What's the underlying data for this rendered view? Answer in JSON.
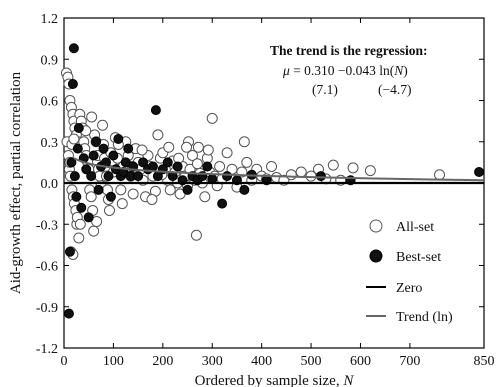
{
  "chart_data": {
    "type": "scatter",
    "xlabel": "Ordered by sample size, N",
    "ylabel": "Aid-growth effect, partial correlation",
    "xlim": [
      0,
      850
    ],
    "ylim": [
      -1.2,
      1.2
    ],
    "x_ticks": [
      "0",
      "100",
      "200",
      "300",
      "400",
      "500",
      "600",
      "700",
      "850"
    ],
    "y_ticks": [
      "1.2",
      "0.9",
      "0.6",
      "0.3",
      "0.0",
      "-0.3",
      "-0.6",
      "-0.9",
      "-1.2"
    ],
    "grid": false,
    "legend_position": "lower-right",
    "annotation": {
      "line1": "The trend is the regression:",
      "line2_pre": "μ",
      "line2_main": " = 0.310 −0.043 ln(",
      "line2_var": "N",
      "line2_close": ")",
      "t1": "(7.1)",
      "t2": "(−4.7)"
    },
    "legend": [
      {
        "label": "All-set",
        "marker": "hollow-circle"
      },
      {
        "label": "Best-set",
        "marker": "filled-circle"
      },
      {
        "label": "Zero",
        "marker": "line"
      },
      {
        "label": "Trend (ln)",
        "marker": "line"
      }
    ],
    "trend": {
      "intercept": 0.31,
      "slope": -0.043,
      "fn": "ln"
    },
    "colors": {
      "best": "#111111",
      "all_stroke": "#555555",
      "zero": "#000000",
      "trend": "#666666"
    },
    "series": [
      {
        "name": "All-set",
        "points": [
          [
            5,
            0.8
          ],
          [
            8,
            0.77
          ],
          [
            10,
            0.72
          ],
          [
            12,
            0.6
          ],
          [
            15,
            0.55
          ],
          [
            18,
            0.5
          ],
          [
            20,
            0.45
          ],
          [
            22,
            0.4
          ],
          [
            25,
            0.35
          ],
          [
            28,
            0.3
          ],
          [
            6,
            0.3
          ],
          [
            9,
            0.2
          ],
          [
            11,
            0.1
          ],
          [
            13,
            0.05
          ],
          [
            16,
            -0.05
          ],
          [
            19,
            -0.1
          ],
          [
            21,
            -0.15
          ],
          [
            24,
            -0.2
          ],
          [
            26,
            -0.3
          ],
          [
            30,
            -0.4
          ],
          [
            14,
            -0.5
          ],
          [
            18,
            -0.52
          ],
          [
            32,
            0.5
          ],
          [
            35,
            0.45
          ],
          [
            38,
            0.4
          ],
          [
            40,
            0.3
          ],
          [
            42,
            0.25
          ],
          [
            45,
            0.2
          ],
          [
            48,
            0.15
          ],
          [
            50,
            0.1
          ],
          [
            52,
            -0.05
          ],
          [
            55,
            -0.1
          ],
          [
            58,
            -0.2
          ],
          [
            60,
            -0.35
          ],
          [
            62,
            0.35
          ],
          [
            65,
            0.3
          ],
          [
            68,
            0.2
          ],
          [
            70,
            0.1
          ],
          [
            72,
            0.05
          ],
          [
            75,
            -0.02
          ],
          [
            78,
            0.42
          ],
          [
            80,
            0.28
          ],
          [
            82,
            0.18
          ],
          [
            85,
            0.12
          ],
          [
            88,
            -0.05
          ],
          [
            90,
            -0.12
          ],
          [
            92,
            -0.2
          ],
          [
            95,
            0.22
          ],
          [
            98,
            0.16
          ],
          [
            100,
            0.08
          ],
          [
            104,
            0.33
          ],
          [
            108,
            0.18
          ],
          [
            112,
            0.1
          ],
          [
            115,
            -0.05
          ],
          [
            118,
            -0.15
          ],
          [
            120,
            0.12
          ],
          [
            125,
            0.3
          ],
          [
            130,
            0.2
          ],
          [
            135,
            0.05
          ],
          [
            140,
            -0.08
          ],
          [
            145,
            0.25
          ],
          [
            150,
            0.15
          ],
          [
            155,
            0.1
          ],
          [
            160,
            0.02
          ],
          [
            165,
            -0.1
          ],
          [
            170,
            0.2
          ],
          [
            175,
            0.12
          ],
          [
            180,
            0.05
          ],
          [
            185,
            -0.06
          ],
          [
            190,
            0.35
          ],
          [
            195,
            0.18
          ],
          [
            200,
            0.22
          ],
          [
            205,
            0.1
          ],
          [
            210,
            0.02
          ],
          [
            215,
            -0.05
          ],
          [
            220,
            0.16
          ],
          [
            225,
            0.08
          ],
          [
            230,
            0.0
          ],
          [
            235,
            -0.08
          ],
          [
            240,
            0.12
          ],
          [
            245,
            0.05
          ],
          [
            250,
            -0.02
          ],
          [
            255,
            0.1
          ],
          [
            260,
            0.2
          ],
          [
            265,
            0.02
          ],
          [
            268,
            -0.38
          ],
          [
            270,
            0.14
          ],
          [
            275,
            0.07
          ],
          [
            280,
            0.0
          ],
          [
            285,
            -0.1
          ],
          [
            290,
            0.18
          ],
          [
            295,
            0.08
          ],
          [
            300,
            0.47
          ],
          [
            305,
            0.05
          ],
          [
            310,
            -0.02
          ],
          [
            315,
            0.12
          ],
          [
            320,
            0.03
          ],
          [
            330,
            0.22
          ],
          [
            340,
            0.1
          ],
          [
            350,
            -0.03
          ],
          [
            360,
            0.08
          ],
          [
            365,
            0.3
          ],
          [
            370,
            0.15
          ],
          [
            380,
            0.02
          ],
          [
            390,
            0.1
          ],
          [
            400,
            0.05
          ],
          [
            410,
            0.03
          ],
          [
            420,
            0.12
          ],
          [
            430,
            0.04
          ],
          [
            445,
            0.02
          ],
          [
            460,
            0.06
          ],
          [
            480,
            0.08
          ],
          [
            500,
            0.05
          ],
          [
            515,
            0.1
          ],
          [
            530,
            0.03
          ],
          [
            545,
            0.13
          ],
          [
            560,
            0.02
          ],
          [
            585,
            0.11
          ],
          [
            620,
            0.09
          ],
          [
            760,
            0.06
          ],
          [
            12,
            0.15
          ],
          [
            16,
            0.28
          ],
          [
            20,
            0.32
          ],
          [
            27,
            -0.25
          ],
          [
            33,
            -0.3
          ],
          [
            44,
            0.38
          ],
          [
            56,
            0.48
          ],
          [
            66,
            -0.28
          ],
          [
            86,
            0.05
          ],
          [
            110,
            0.28
          ],
          [
            138,
            0.12
          ],
          [
            158,
            0.24
          ],
          [
            178,
            -0.12
          ],
          [
            198,
            0.06
          ],
          [
            212,
            0.26
          ],
          [
            232,
            0.18
          ],
          [
            252,
            0.3
          ],
          [
            272,
            0.26
          ],
          [
            292,
            0.24
          ],
          [
            248,
            0.26
          ]
        ]
      },
      {
        "name": "Best-set",
        "points": [
          [
            10,
            -0.95
          ],
          [
            12,
            -0.5
          ],
          [
            15,
            0.15
          ],
          [
            18,
            0.72
          ],
          [
            20,
            0.98
          ],
          [
            22,
            0.05
          ],
          [
            25,
            -0.1
          ],
          [
            28,
            0.25
          ],
          [
            30,
            0.4
          ],
          [
            35,
            -0.18
          ],
          [
            40,
            0.18
          ],
          [
            45,
            0.1
          ],
          [
            50,
            -0.25
          ],
          [
            55,
            0.05
          ],
          [
            60,
            0.2
          ],
          [
            65,
            0.3
          ],
          [
            70,
            -0.05
          ],
          [
            75,
            0.12
          ],
          [
            80,
            0.25
          ],
          [
            85,
            0.15
          ],
          [
            90,
            0.05
          ],
          [
            95,
            -0.1
          ],
          [
            100,
            0.2
          ],
          [
            105,
            0.1
          ],
          [
            110,
            0.32
          ],
          [
            115,
            0.05
          ],
          [
            120,
            0.08
          ],
          [
            125,
            0.15
          ],
          [
            130,
            0.25
          ],
          [
            135,
            0.05
          ],
          [
            140,
            0.12
          ],
          [
            150,
            0.05
          ],
          [
            160,
            0.15
          ],
          [
            170,
            0.1
          ],
          [
            180,
            0.12
          ],
          [
            186,
            0.53
          ],
          [
            190,
            0.05
          ],
          [
            200,
            0.1
          ],
          [
            210,
            0.15
          ],
          [
            220,
            0.05
          ],
          [
            230,
            0.12
          ],
          [
            240,
            0.02
          ],
          [
            250,
            -0.05
          ],
          [
            260,
            0.05
          ],
          [
            270,
            0.02
          ],
          [
            280,
            0.05
          ],
          [
            290,
            0.12
          ],
          [
            300,
            0.03
          ],
          [
            320,
            -0.15
          ],
          [
            330,
            0.05
          ],
          [
            350,
            0.02
          ],
          [
            365,
            -0.05
          ],
          [
            380,
            0.06
          ],
          [
            410,
            0.02
          ],
          [
            520,
            0.05
          ],
          [
            580,
            0.02
          ],
          [
            840,
            0.08
          ]
        ]
      }
    ]
  }
}
